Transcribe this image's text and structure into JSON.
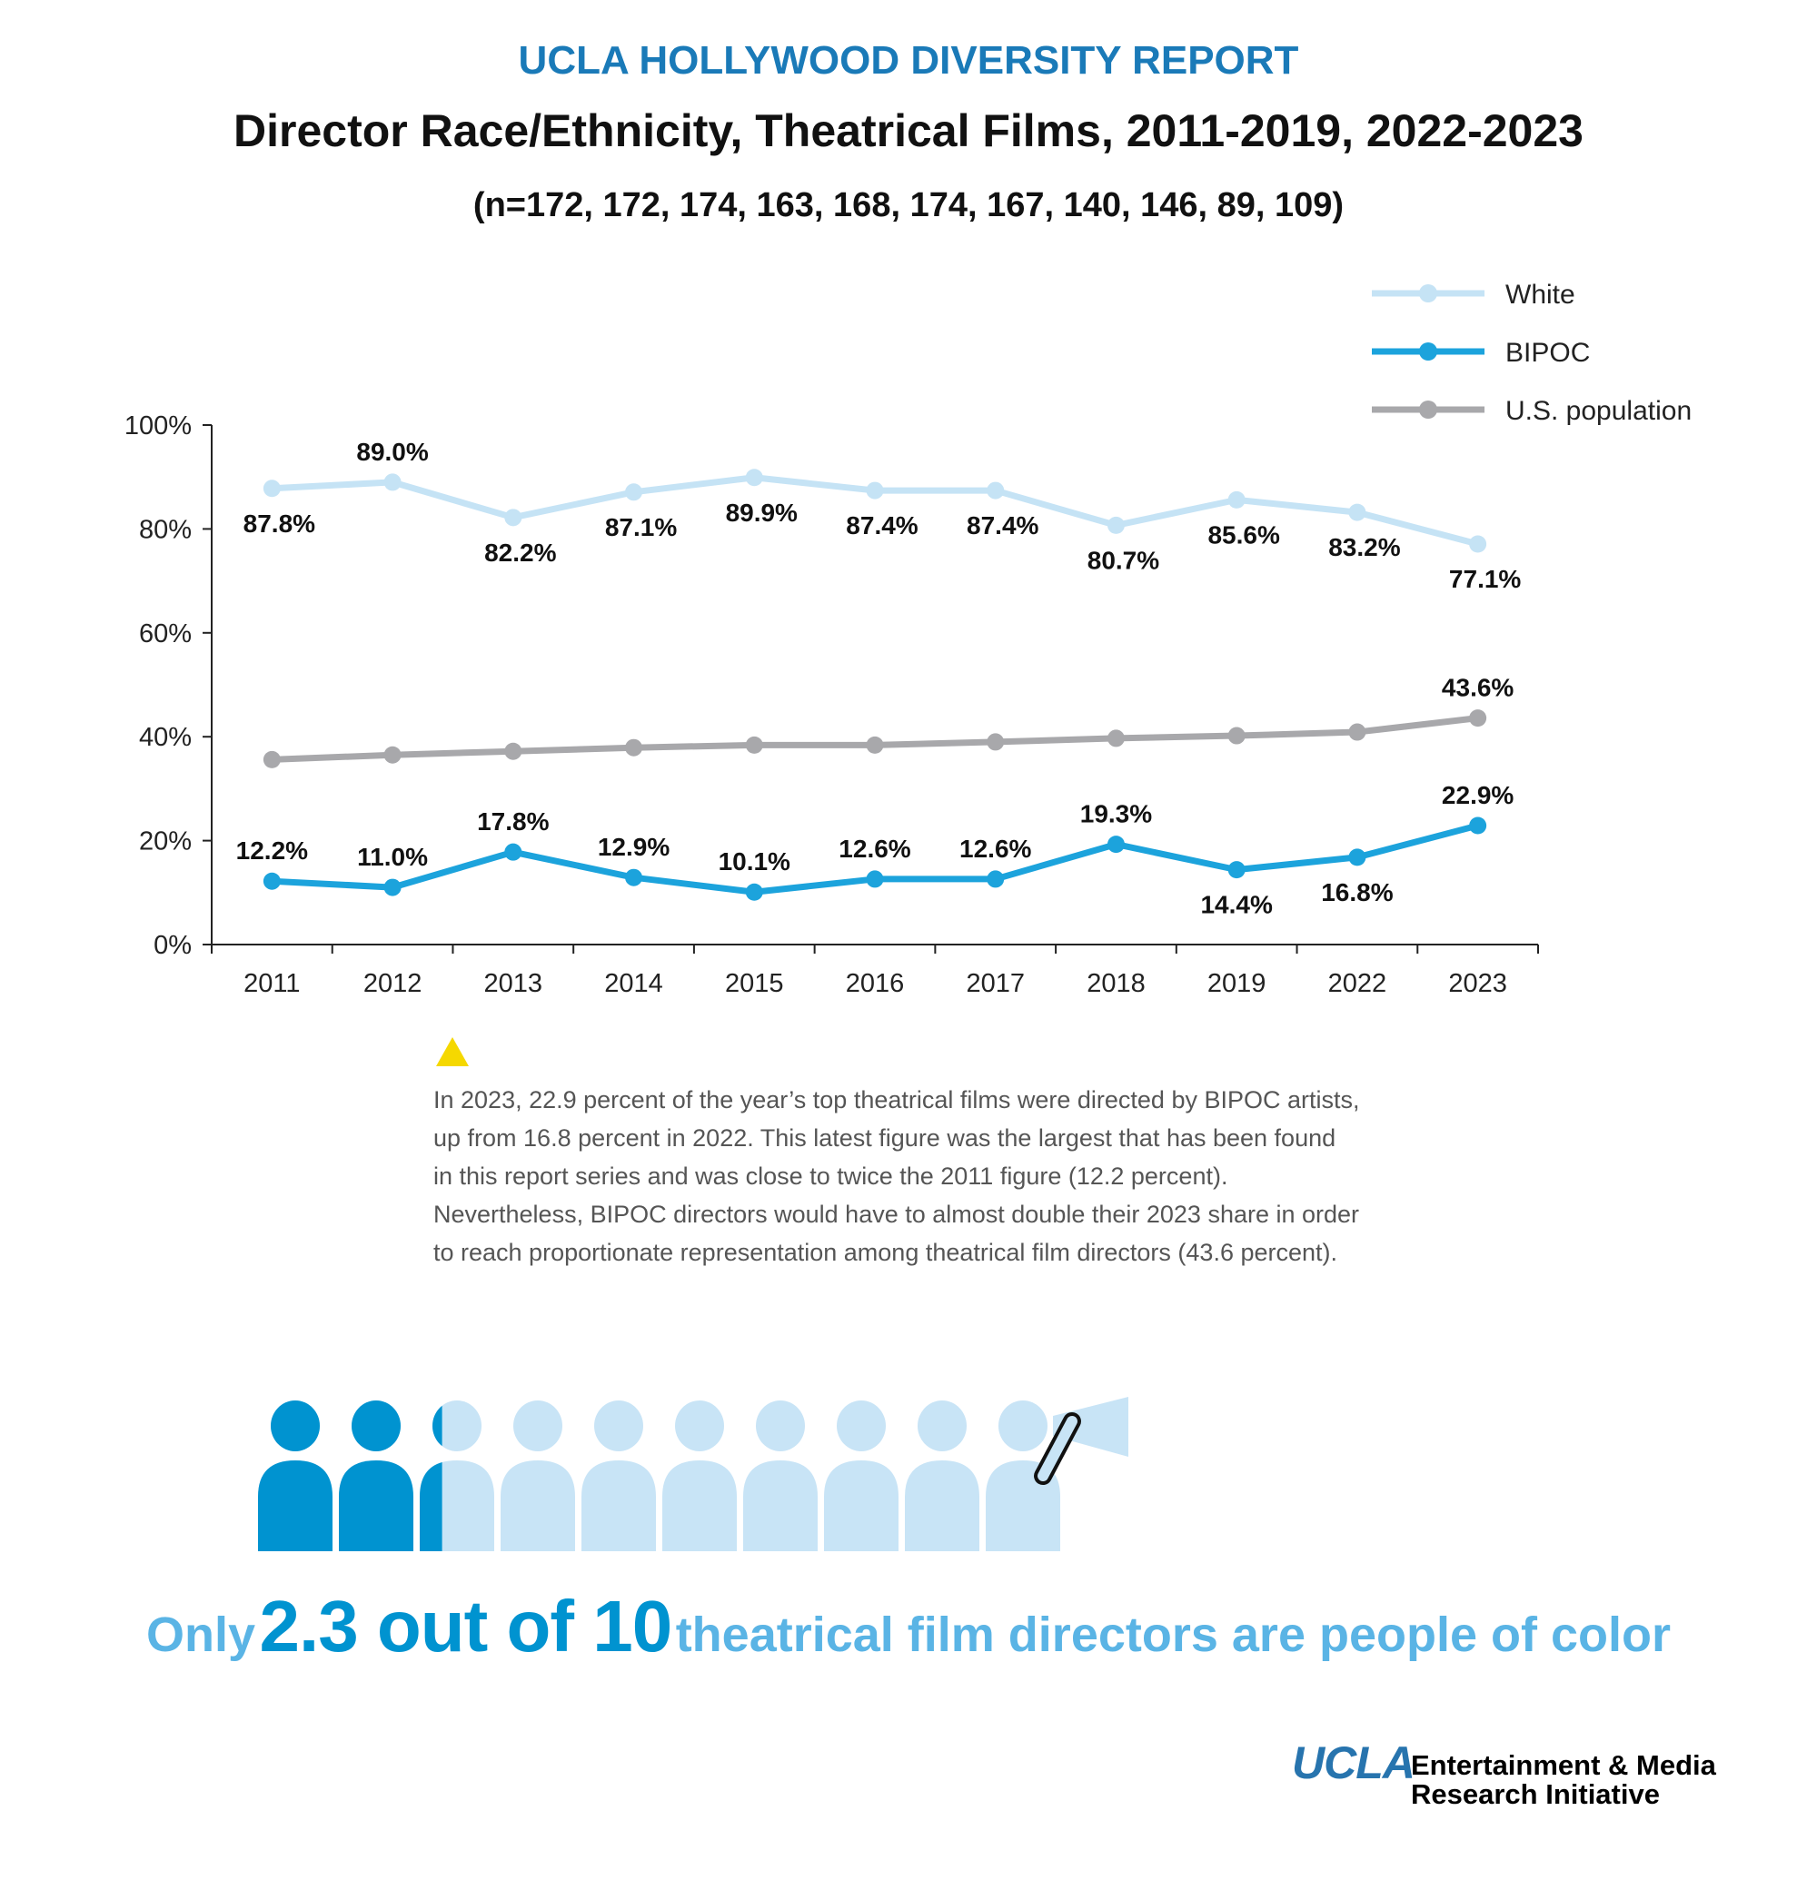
{
  "header": {
    "kicker": "UCLA HOLLYWOOD DIVERSITY REPORT",
    "title": "Director Race/Ethnicity, Theatrical Films, 2011-2019, 2022-2023",
    "sample_sizes": "(n=172, 172, 174, 163, 168, 174, 167, 140, 146, 89, 109)"
  },
  "chart_data": {
    "type": "line",
    "categories": [
      "2011",
      "2012",
      "2013",
      "2014",
      "2015",
      "2016",
      "2017",
      "2018",
      "2019",
      "2022",
      "2023"
    ],
    "ylim": [
      0,
      100
    ],
    "yticks": [
      "0%",
      "20%",
      "40%",
      "60%",
      "80%",
      "100%"
    ],
    "grid": false,
    "legend_position": "top-right",
    "series": [
      {
        "name": "White",
        "color": "#c5e3f5",
        "values": [
          87.8,
          89.0,
          82.2,
          87.1,
          89.9,
          87.4,
          87.4,
          80.7,
          85.6,
          83.2,
          77.1
        ],
        "labels": [
          "87.8%",
          "89.0%",
          "82.2%",
          "87.1%",
          "89.9%",
          "87.4%",
          "87.4%",
          "80.7%",
          "85.6%",
          "83.2%",
          "77.1%"
        ]
      },
      {
        "name": "BIPOC",
        "color": "#1ca3dc",
        "values": [
          12.2,
          11.0,
          17.8,
          12.9,
          10.1,
          12.6,
          12.6,
          19.3,
          14.4,
          16.8,
          22.9
        ],
        "labels": [
          "12.2%",
          "11.0%",
          "17.8%",
          "12.9%",
          "10.1%",
          "12.6%",
          "12.6%",
          "19.3%",
          "14.4%",
          "16.8%",
          "22.9%"
        ]
      },
      {
        "name": "U.S. population",
        "color": "#a8a8ab",
        "values": [
          35.6,
          36.5,
          37.2,
          37.9,
          38.4,
          38.4,
          39.0,
          39.7,
          40.2,
          40.9,
          43.6
        ],
        "labels": [
          "",
          "",
          "",
          "",
          "",
          "",
          "",
          "",
          "",
          "",
          "43.6%"
        ]
      }
    ]
  },
  "note": {
    "icon": "yellow-triangle-icon",
    "text": "In 2023, 22.9 percent of the year’s top theatrical films were directed by BIPOC artists, up from 16.8 percent in 2022. This latest figure was the largest that has been found in this report series and was close to twice the 2011 figure (12.2 percent). Nevertheless, BIPOC directors would have to almost double their 2023 share in order to reach proportionate representation among theatrical film directors (43.6 percent)."
  },
  "pictogram": {
    "total_people": 10,
    "filled_people": 2.3,
    "filled_color": "#0093d0",
    "empty_color": "#c8e4f6",
    "icon": "megaphone-icon"
  },
  "headline": {
    "part1": "Only",
    "part2": "2.3 out of 10",
    "part3": "theatrical film  directors are people of color"
  },
  "logo": {
    "ucla": "UCLA",
    "line1": "Entertainment & Media",
    "line2": "Research Initiative"
  }
}
